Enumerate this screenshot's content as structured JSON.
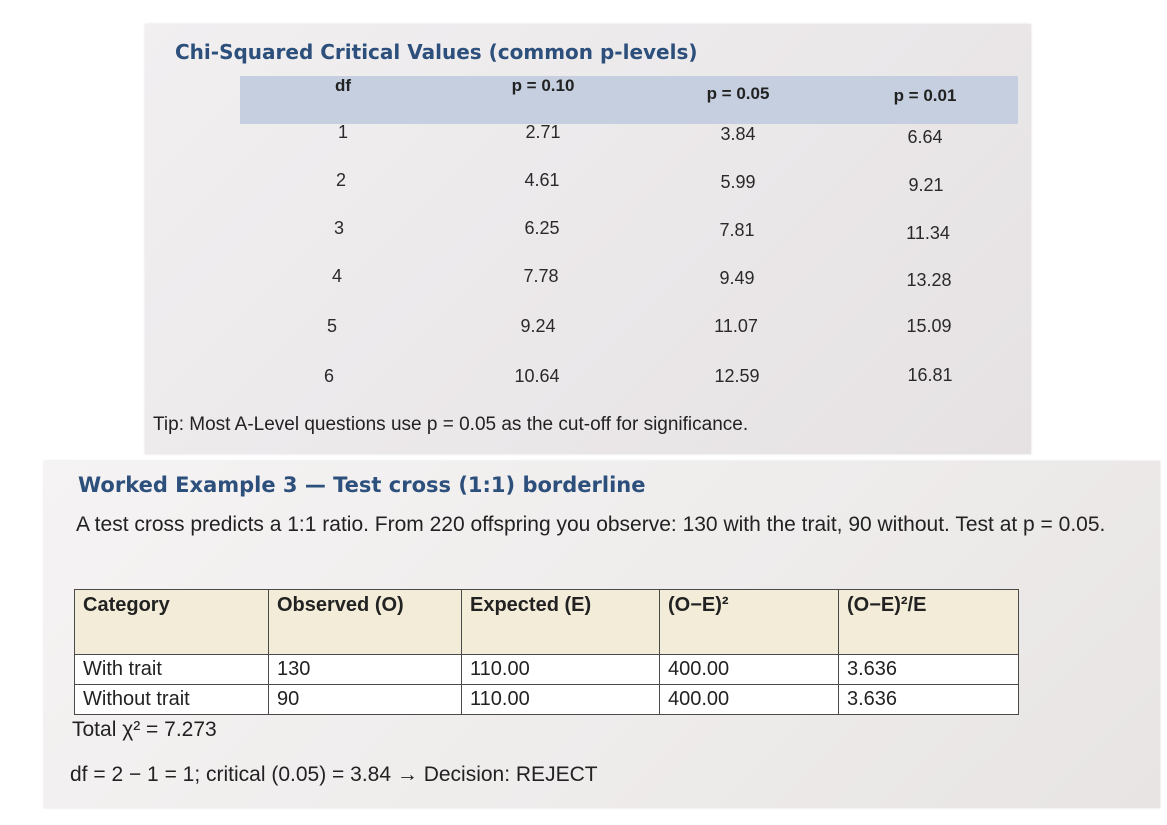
{
  "critical_table": {
    "title": "Chi-Squared Critical Values (common p-levels)",
    "headers": [
      "df",
      "p = 0.10",
      "p = 0.05",
      "p = 0.01"
    ],
    "rows": [
      [
        "1",
        "2.71",
        "3.84",
        "6.64"
      ],
      [
        "2",
        "4.61",
        "5.99",
        "9.21"
      ],
      [
        "3",
        "6.25",
        "7.81",
        "11.34"
      ],
      [
        "4",
        "7.78",
        "9.49",
        "13.28"
      ],
      [
        "5",
        "9.24",
        "11.07",
        "15.09"
      ],
      [
        "6",
        "10.64",
        "12.59",
        "16.81"
      ]
    ],
    "tip": "Tip: Most A-Level questions use p = 0.05 as the cut-off for significance."
  },
  "worked_example": {
    "title": "Worked Example 3 — Test cross (1:1) borderline",
    "description": "A test cross predicts a 1:1 ratio. From 220 offspring you observe: 130 with the trait, 90 without. Test at p = 0.05.",
    "table": {
      "headers": [
        "Category",
        "Observed (O)",
        "Expected (E)",
        "(O−E)²",
        "(O−E)²/E"
      ],
      "rows": [
        [
          "With trait",
          "130",
          "110.00",
          "400.00",
          "3.636"
        ],
        [
          "Without trait",
          "90",
          "110.00",
          "400.00",
          "3.636"
        ]
      ]
    },
    "total": "Total χ² = 7.273",
    "decision": "df = 2 − 1 = 1; critical (0.05) = 3.84 → Decision: REJECT"
  }
}
